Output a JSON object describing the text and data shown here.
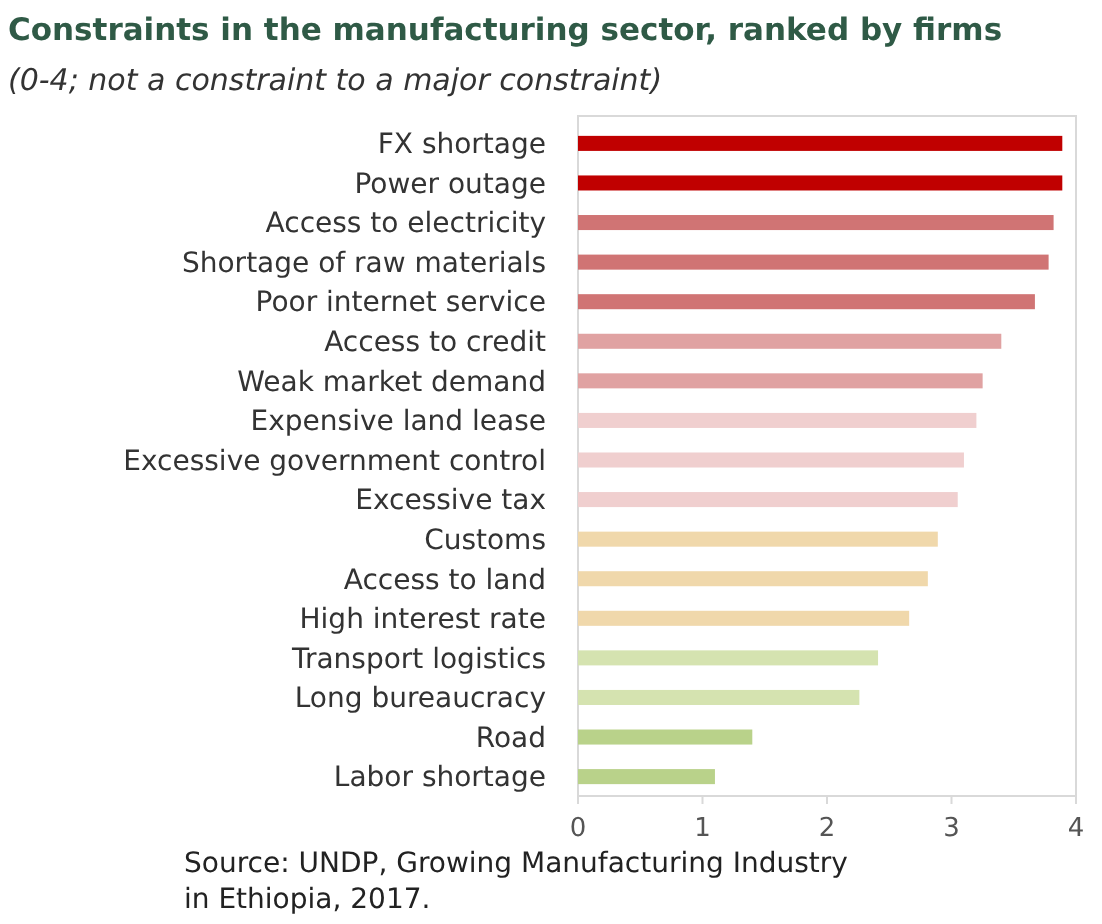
{
  "chart_data": {
    "type": "bar",
    "orientation": "horizontal",
    "title": "Constraints in the manufacturing sector, ranked by firms",
    "subtitle": "(0-4; not a constraint to a major constraint)",
    "categories": [
      "FX shortage",
      "Power outage",
      "Access to electricity",
      "Shortage of raw materials",
      "Poor internet service",
      "Access to credit",
      "Weak market demand",
      "Expensive land lease",
      "Excessive government control",
      "Excessive tax",
      "Customs",
      "Access to land",
      "High interest rate",
      "Transport logistics",
      "Long bureaucracy",
      "Road",
      "Labor shortage"
    ],
    "values": [
      3.89,
      3.89,
      3.82,
      3.78,
      3.67,
      3.4,
      3.25,
      3.2,
      3.1,
      3.05,
      2.89,
      2.81,
      2.66,
      2.41,
      2.26,
      1.4,
      1.1
    ],
    "colors": [
      "#c00000",
      "#c00000",
      "#d07474",
      "#d07474",
      "#d07474",
      "#e0a2a2",
      "#e0a2a2",
      "#f0cfcf",
      "#f0cfcf",
      "#f0cfcf",
      "#f0d8ab",
      "#f0d8ab",
      "#f0d8ab",
      "#d5e3b0",
      "#d5e3b0",
      "#b9d28a",
      "#b9d28a"
    ],
    "xlim": [
      0,
      4
    ],
    "xticks": [
      0,
      1,
      2,
      3,
      4
    ],
    "annotations": [
      "Source: UNDP, Growing Manufacturing Industry in Ethiopia, 2017."
    ]
  }
}
